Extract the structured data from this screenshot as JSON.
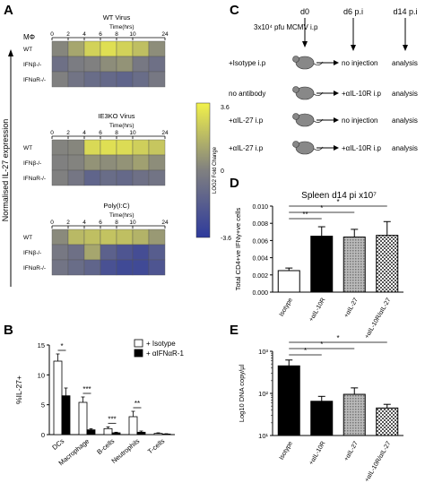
{
  "panels": {
    "A": {
      "letter": "A",
      "y_axis_label": "Normalised IL-27 expression",
      "cell_type_label": "MΦ",
      "time_label": "Time(hrs)",
      "time_points": [
        "0",
        "2",
        "4",
        "6",
        "8",
        "10",
        "24"
      ],
      "row_labels": [
        "WT",
        "IFNβ-/-",
        "IFNαR-/-"
      ],
      "colorbar": {
        "max": "3.6",
        "mid": "0",
        "min": "-3.6",
        "label": "LOG2 Fold Change",
        "colors": {
          "high": "#f2f24a",
          "mid": "#808080",
          "low": "#2e3a9c"
        }
      },
      "heatmaps": [
        {
          "title": "WT Virus",
          "values": [
            [
              0.2,
              1.2,
              2.6,
              3.0,
              2.6,
              2.0,
              0.4
            ],
            [
              -0.8,
              -0.2,
              0.0,
              0.4,
              0.6,
              -0.4,
              -0.8
            ],
            [
              0.0,
              -0.6,
              -1.0,
              -1.2,
              -1.4,
              -1.0,
              -0.4
            ]
          ]
        },
        {
          "title": "IE3KO Virus",
          "values": [
            [
              0.1,
              0.2,
              2.8,
              3.0,
              2.9,
              2.5,
              2.2
            ],
            [
              0.0,
              0.1,
              0.6,
              0.4,
              0.6,
              1.0,
              0.4
            ],
            [
              0.0,
              -0.5,
              -1.4,
              -1.0,
              -1.2,
              -0.8,
              -0.6
            ]
          ]
        },
        {
          "title": "Poly(I:C)",
          "values": [
            [
              0.3,
              1.8,
              2.0,
              2.1,
              2.0,
              1.6,
              0.8
            ],
            [
              -0.4,
              -0.8,
              1.2,
              -1.6,
              -2.2,
              -2.6,
              -1.8
            ],
            [
              -0.6,
              -1.0,
              -1.4,
              -2.4,
              -2.8,
              -2.8,
              -2.2
            ]
          ]
        }
      ]
    },
    "B": {
      "letter": "B",
      "chart_data": {
        "type": "bar",
        "ylabel": "%IL-27+",
        "categories": [
          "DCs",
          "Macrophage",
          "B-cells",
          "Neutrophils",
          "T-cells"
        ],
        "ylim": [
          0,
          15
        ],
        "yticks": [
          "0",
          "5",
          "10",
          "15"
        ],
        "series": [
          {
            "name": "+ Isotype",
            "values": [
              12.3,
              5.4,
              1.0,
              3.0,
              0.2
            ],
            "errors": [
              1.2,
              0.9,
              0.3,
              0.9,
              0.1
            ]
          },
          {
            "name": "+ αIFNαR-1",
            "values": [
              6.5,
              0.8,
              0.3,
              0.4,
              0.1
            ],
            "errors": [
              1.3,
              0.2,
              0.1,
              0.2,
              0.05
            ]
          }
        ],
        "significance": [
          "*",
          "***",
          "***",
          "**"
        ]
      }
    },
    "C": {
      "letter": "C",
      "timeline": [
        "d0",
        "d6 p.i",
        "d14 p.i"
      ],
      "infection": "3x10⁴ pfu MCMV i.p",
      "rows": [
        {
          "d0": "+Isotype i.p",
          "d6": "no injection",
          "d14": "analysis"
        },
        {
          "d0": "no antibody",
          "d6": "+αIL-10R i.p",
          "d14": "analysis"
        },
        {
          "d0": "+αIL-27 i.p",
          "d6": "no injection",
          "d14": "analysis"
        },
        {
          "d0": "+αIL-27 i.p",
          "d6": "+αIL-10R i.p",
          "d14": "analysis"
        }
      ]
    },
    "D": {
      "letter": "D",
      "chart_data": {
        "type": "bar",
        "title": "Spleen d14 pi x10⁷",
        "ylabel": "Total CD4+ve IFNγ+ve cells",
        "categories": [
          "Isotype",
          "+αIL-10R",
          "+αIL-27",
          "+αIL-10R/αIL-27"
        ],
        "values": [
          0.0025,
          0.0065,
          0.0064,
          0.0066
        ],
        "errors": [
          0.0003,
          0.0011,
          0.0009,
          0.0016
        ],
        "ylim": [
          0,
          0.01
        ],
        "yticks": [
          "0.000",
          "0.002",
          "0.004",
          "0.006",
          "0.008",
          "0.010"
        ],
        "significance": [
          "**",
          "*",
          "*"
        ]
      }
    },
    "E": {
      "letter": "E",
      "chart_data": {
        "type": "bar",
        "ylabel": "Log10 DNA copy/µl",
        "scale": "log",
        "categories": [
          "Isotype",
          "+αIL-10R",
          "+αIL-27",
          "+αIL-10R/αIL-27"
        ],
        "values": [
          450,
          65,
          95,
          45
        ],
        "errors_upper": [
          620,
          85,
          135,
          55
        ],
        "ylim": [
          10,
          1000
        ],
        "yticks": [
          "10¹",
          "10²",
          "10³"
        ],
        "significance": [
          "*",
          "*",
          "*"
        ]
      }
    }
  }
}
